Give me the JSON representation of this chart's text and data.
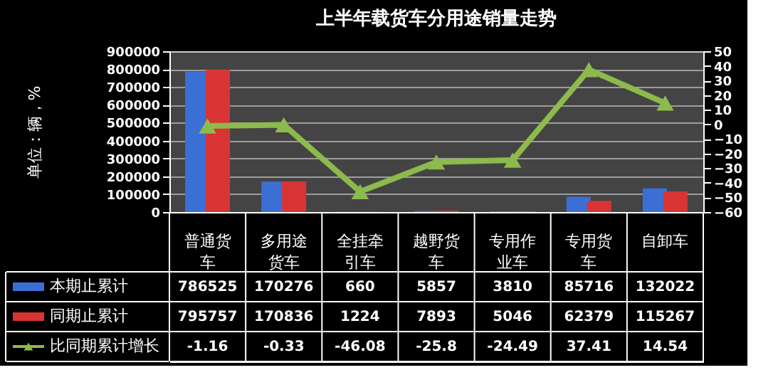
{
  "chart_data": {
    "type": "bar",
    "title": "上半年载货车分用途销量走势",
    "ylabel": "单位：辆，%",
    "categories": [
      "普通货车",
      "多用途货车",
      "全挂牵引车",
      "越野货车",
      "专用作业车",
      "专用货车",
      "自卸车"
    ],
    "series": [
      {
        "name": "本期止累计",
        "color": "#3b6fd6",
        "values": [
          786525,
          170276,
          660,
          5857,
          3810,
          85716,
          132022
        ]
      },
      {
        "name": "同期止累计",
        "color": "#d83434",
        "values": [
          795757,
          170836,
          1224,
          7893,
          5046,
          62379,
          115267
        ]
      },
      {
        "name": "比同期累计增长",
        "color": "#8dba4c",
        "type": "line",
        "axis": "y2",
        "marker": "triangle",
        "values": [
          -1.16,
          -0.33,
          -46.08,
          -25.8,
          -24.49,
          37.41,
          14.54
        ]
      }
    ],
    "ylim": [
      0,
      900000
    ],
    "yticks": [
      0,
      100000,
      200000,
      300000,
      400000,
      500000,
      600000,
      700000,
      800000,
      900000
    ],
    "y2lim": [
      -60,
      50
    ],
    "y2ticks": [
      -60,
      -50,
      -40,
      -30,
      -20,
      -10,
      0,
      10,
      20,
      30,
      40,
      50
    ],
    "grid": "y",
    "legend": "bottom",
    "data_labels": true
  }
}
